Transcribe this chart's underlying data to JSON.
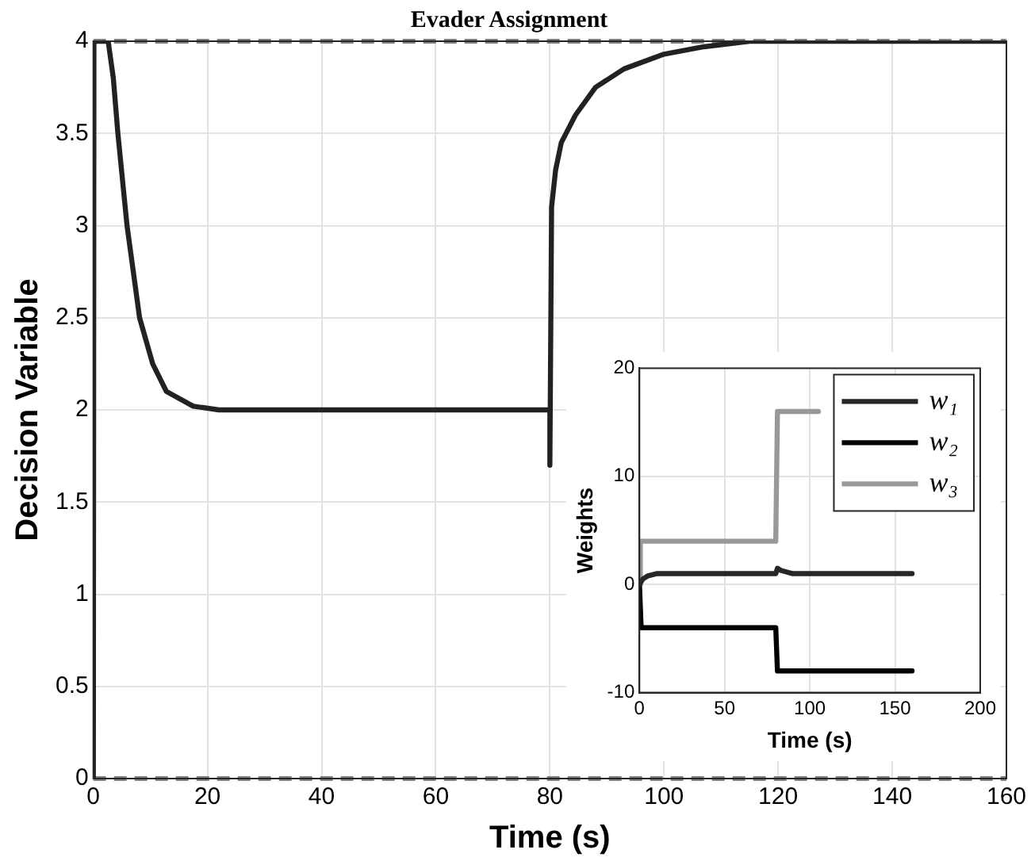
{
  "chart_data": [
    {
      "type": "line",
      "title": "Evader Assignment",
      "xlabel": "Time (s)",
      "ylabel": "Decision Variable",
      "xlim": [
        0,
        160
      ],
      "xticks": [
        0,
        20,
        40,
        60,
        80,
        100,
        120,
        140,
        160
      ],
      "ylim": [
        0,
        4
      ],
      "yticks": [
        0,
        0.5,
        1,
        1.5,
        2,
        2.5,
        3,
        3.5,
        4
      ],
      "grid": true,
      "marker": "none",
      "line_style": "solid",
      "ref_lines": [
        {
          "axis": "y",
          "value": 0,
          "color": "#808080",
          "line_style": "dashed"
        },
        {
          "axis": "y",
          "value": 4,
          "color": "#808080",
          "line_style": "dashed"
        }
      ],
      "series": [
        {
          "color": "#222222",
          "x": [
            0,
            0.1,
            2.6,
            3.5,
            4.3,
            5.9,
            8.1,
            10.4,
            12.8,
            17.5,
            22,
            80,
            80,
            80.3,
            81,
            82,
            84.5,
            88,
            93,
            100,
            107,
            115,
            160
          ],
          "values": [
            0,
            4,
            4,
            3.8,
            3.5,
            3.0,
            2.5,
            2.25,
            2.1,
            2.02,
            2,
            2,
            1.7,
            3.1,
            3.3,
            3.45,
            3.6,
            3.75,
            3.85,
            3.93,
            3.97,
            4,
            4
          ]
        }
      ]
    },
    {
      "type": "line",
      "xlabel": "Time (s)",
      "ylabel": "Weights",
      "xlim": [
        0,
        200
      ],
      "xticks": [
        0,
        50,
        100,
        150,
        200
      ],
      "ylim": [
        -10,
        20
      ],
      "yticks": [
        -10,
        0,
        10,
        20
      ],
      "grid": true,
      "marker": "none",
      "line_style": "solid",
      "legend": "top right",
      "series": [
        {
          "name": "w₁",
          "color": "#262626",
          "x": [
            0,
            2,
            5,
            10,
            80,
            81,
            83,
            90,
            160
          ],
          "values": [
            0,
            0.5,
            0.8,
            1,
            1,
            1.5,
            1.3,
            1,
            1
          ]
        },
        {
          "name": "w₂",
          "color": "#000000",
          "x": [
            0,
            1,
            80,
            81,
            160
          ],
          "values": [
            0,
            -4,
            -4,
            -8,
            -8
          ]
        },
        {
          "name": "w₃",
          "color": "#999999",
          "x": [
            0,
            0.5,
            80,
            81,
            105
          ],
          "values": [
            0,
            4,
            4,
            16,
            16
          ]
        }
      ]
    }
  ]
}
